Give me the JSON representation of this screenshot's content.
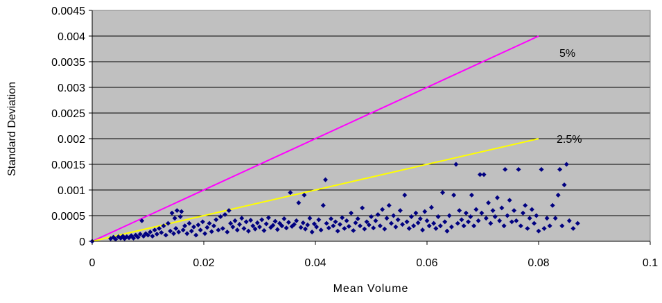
{
  "chart_data": {
    "type": "scatter",
    "title": "",
    "xlabel": "Mean Volume",
    "ylabel": "Standard Deviation",
    "xlim": [
      0,
      0.1
    ],
    "ylim": [
      0,
      0.0045
    ],
    "x_ticks": [
      "0",
      "0.02",
      "0.04",
      "0.06",
      "0.08",
      "0.1"
    ],
    "y_ticks": [
      "0",
      "0.0005",
      "0.001",
      "0.0015",
      "0.002",
      "0.0025",
      "0.003",
      "0.0035",
      "0.004",
      "0.0045"
    ],
    "grid": "horizontal",
    "plot_background": "#c0c0c0",
    "reference_lines": [
      {
        "label": "5%",
        "color": "#ff00ff",
        "x": [
          0,
          0.08
        ],
        "y": [
          0,
          0.004
        ]
      },
      {
        "label": "2.5%",
        "color": "#ffff00",
        "x": [
          0,
          0.08
        ],
        "y": [
          0,
          0.002
        ]
      }
    ],
    "scatter_color": "#000080",
    "series": [
      {
        "points": [
          [
            0.0,
            0.0
          ],
          [
            0.0033,
            5e-05
          ],
          [
            0.0038,
            8e-05
          ],
          [
            0.0042,
            4e-05
          ],
          [
            0.0047,
            9e-05
          ],
          [
            0.0051,
            6e-05
          ],
          [
            0.0055,
            0.0001
          ],
          [
            0.0058,
            5e-05
          ],
          [
            0.0062,
            9e-05
          ],
          [
            0.0066,
            7e-05
          ],
          [
            0.007,
            0.00011
          ],
          [
            0.0074,
            6e-05
          ],
          [
            0.0078,
            0.00012
          ],
          [
            0.0082,
            8e-05
          ],
          [
            0.0086,
            0.00014
          ],
          [
            0.0089,
            0.0004
          ],
          [
            0.0092,
            0.0001
          ],
          [
            0.0096,
            0.00015
          ],
          [
            0.01,
            0.00012
          ],
          [
            0.0104,
            0.00018
          ],
          [
            0.0108,
            0.0001
          ],
          [
            0.0112,
            0.00022
          ],
          [
            0.0116,
            0.00014
          ],
          [
            0.012,
            0.00025
          ],
          [
            0.0124,
            0.00017
          ],
          [
            0.0128,
            0.0003
          ],
          [
            0.0132,
            0.00012
          ],
          [
            0.0136,
            0.00035
          ],
          [
            0.014,
            0.0002
          ],
          [
            0.0143,
            0.00055
          ],
          [
            0.0146,
            0.00015
          ],
          [
            0.0148,
            0.00045
          ],
          [
            0.015,
            0.00025
          ],
          [
            0.0152,
            0.0006
          ],
          [
            0.0155,
            0.00018
          ],
          [
            0.0158,
            0.00048
          ],
          [
            0.016,
            0.00058
          ],
          [
            0.0163,
            0.00022
          ],
          [
            0.0166,
            0.0003
          ],
          [
            0.017,
            0.00015
          ],
          [
            0.0174,
            0.00035
          ],
          [
            0.0178,
            0.0002
          ],
          [
            0.0182,
            0.00028
          ],
          [
            0.0186,
            0.00012
          ],
          [
            0.019,
            0.00032
          ],
          [
            0.0194,
            0.00022
          ],
          [
            0.0198,
            0.00038
          ],
          [
            0.0202,
            0.00015
          ],
          [
            0.0206,
            0.00027
          ],
          [
            0.021,
            0.00035
          ],
          [
            0.0214,
            0.00019
          ],
          [
            0.0218,
            0.0003
          ],
          [
            0.0222,
            0.00042
          ],
          [
            0.0226,
            0.00022
          ],
          [
            0.023,
            0.00048
          ],
          [
            0.0234,
            0.00025
          ],
          [
            0.0238,
            0.00052
          ],
          [
            0.0242,
            0.00018
          ],
          [
            0.0245,
            0.0006
          ],
          [
            0.0248,
            0.00035
          ],
          [
            0.0252,
            0.00028
          ],
          [
            0.0256,
            0.0004
          ],
          [
            0.026,
            0.00022
          ],
          [
            0.0264,
            0.00033
          ],
          [
            0.0268,
            0.00045
          ],
          [
            0.0272,
            0.00025
          ],
          [
            0.0276,
            0.00038
          ],
          [
            0.028,
            0.0002
          ],
          [
            0.0284,
            0.00041
          ],
          [
            0.0288,
            0.0003
          ],
          [
            0.0292,
            0.00024
          ],
          [
            0.0296,
            0.00036
          ],
          [
            0.03,
            0.00028
          ],
          [
            0.0304,
            0.00042
          ],
          [
            0.0308,
            0.00021
          ],
          [
            0.0312,
            0.00034
          ],
          [
            0.0316,
            0.00046
          ],
          [
            0.032,
            0.00027
          ],
          [
            0.0324,
            0.00031
          ],
          [
            0.0328,
            0.00039
          ],
          [
            0.0332,
            0.00023
          ],
          [
            0.0336,
            0.00035
          ],
          [
            0.034,
            0.0003
          ],
          [
            0.0344,
            0.00044
          ],
          [
            0.0348,
            0.00026
          ],
          [
            0.0352,
            0.00037
          ],
          [
            0.0355,
            0.00095
          ],
          [
            0.0358,
            0.00029
          ],
          [
            0.0362,
            0.00033
          ],
          [
            0.0366,
            0.0004
          ],
          [
            0.037,
            0.00075
          ],
          [
            0.0374,
            0.00027
          ],
          [
            0.0378,
            0.00036
          ],
          [
            0.038,
            0.0009
          ],
          [
            0.0382,
            0.00024
          ],
          [
            0.0386,
            0.00032
          ],
          [
            0.039,
            0.00045
          ],
          [
            0.0394,
            0.00018
          ],
          [
            0.0398,
            0.00034
          ],
          [
            0.0402,
            0.00028
          ],
          [
            0.0406,
            0.00042
          ],
          [
            0.041,
            0.00022
          ],
          [
            0.0414,
            0.0007
          ],
          [
            0.0418,
            0.0012
          ],
          [
            0.042,
            0.00035
          ],
          [
            0.0424,
            0.00026
          ],
          [
            0.0428,
            0.00044
          ],
          [
            0.0432,
            0.0003
          ],
          [
            0.0436,
            0.00038
          ],
          [
            0.044,
            0.0002
          ],
          [
            0.0444,
            0.00033
          ],
          [
            0.0448,
            0.00046
          ],
          [
            0.0452,
            0.00025
          ],
          [
            0.0456,
            0.0004
          ],
          [
            0.046,
            0.00029
          ],
          [
            0.0464,
            0.00055
          ],
          [
            0.0468,
            0.00021
          ],
          [
            0.0472,
            0.00036
          ],
          [
            0.0476,
            0.00044
          ],
          [
            0.048,
            0.0003
          ],
          [
            0.0484,
            0.00065
          ],
          [
            0.0488,
            0.00024
          ],
          [
            0.0492,
            0.00038
          ],
          [
            0.0496,
            0.00032
          ],
          [
            0.05,
            0.00048
          ],
          [
            0.0504,
            0.00026
          ],
          [
            0.0508,
            0.0004
          ],
          [
            0.0512,
            0.00052
          ],
          [
            0.0516,
            0.0003
          ],
          [
            0.052,
            0.00062
          ],
          [
            0.0524,
            0.00024
          ],
          [
            0.0528,
            0.00045
          ],
          [
            0.0532,
            0.0007
          ],
          [
            0.0536,
            0.00035
          ],
          [
            0.054,
            0.0005
          ],
          [
            0.0544,
            0.00028
          ],
          [
            0.0548,
            0.00042
          ],
          [
            0.0552,
            0.0006
          ],
          [
            0.0556,
            0.00033
          ],
          [
            0.056,
            0.0009
          ],
          [
            0.0564,
            0.00038
          ],
          [
            0.0568,
            0.00025
          ],
          [
            0.0572,
            0.00048
          ],
          [
            0.0576,
            0.0003
          ],
          [
            0.058,
            0.00055
          ],
          [
            0.0584,
            0.00036
          ],
          [
            0.0588,
            0.00044
          ],
          [
            0.0592,
            0.00022
          ],
          [
            0.0596,
            0.00058
          ],
          [
            0.06,
            0.0004
          ],
          [
            0.0604,
            0.0003
          ],
          [
            0.0608,
            0.00066
          ],
          [
            0.0612,
            0.00035
          ],
          [
            0.0616,
            0.00025
          ],
          [
            0.062,
            0.00048
          ],
          [
            0.0624,
            0.0003
          ],
          [
            0.0628,
            0.00095
          ],
          [
            0.0632,
            0.00038
          ],
          [
            0.0636,
            0.0002
          ],
          [
            0.064,
            0.0005
          ],
          [
            0.0644,
            0.00028
          ],
          [
            0.0648,
            0.0009
          ],
          [
            0.0652,
            0.0015
          ],
          [
            0.0655,
            0.00035
          ],
          [
            0.0658,
            0.0006
          ],
          [
            0.0662,
            0.00042
          ],
          [
            0.0666,
            0.0003
          ],
          [
            0.067,
            0.00055
          ],
          [
            0.0674,
            0.00038
          ],
          [
            0.0678,
            0.00048
          ],
          [
            0.068,
            0.0009
          ],
          [
            0.0684,
            0.0003
          ],
          [
            0.0688,
            0.00062
          ],
          [
            0.0692,
            0.0004
          ],
          [
            0.0695,
            0.0013
          ],
          [
            0.0698,
            0.00055
          ],
          [
            0.0702,
            0.0013
          ],
          [
            0.0706,
            0.00045
          ],
          [
            0.071,
            0.00075
          ],
          [
            0.0714,
            0.00035
          ],
          [
            0.0718,
            0.0006
          ],
          [
            0.0722,
            0.00048
          ],
          [
            0.0726,
            0.00085
          ],
          [
            0.073,
            0.0004
          ],
          [
            0.0734,
            0.00065
          ],
          [
            0.0738,
            0.0003
          ],
          [
            0.074,
            0.0014
          ],
          [
            0.0744,
            0.0005
          ],
          [
            0.0748,
            0.0008
          ],
          [
            0.0752,
            0.00038
          ],
          [
            0.0756,
            0.0006
          ],
          [
            0.076,
            0.0004
          ],
          [
            0.0764,
            0.0014
          ],
          [
            0.0768,
            0.0003
          ],
          [
            0.0772,
            0.00055
          ],
          [
            0.0776,
            0.0007
          ],
          [
            0.078,
            0.00025
          ],
          [
            0.0784,
            0.00045
          ],
          [
            0.0788,
            0.00062
          ],
          [
            0.0792,
            0.00035
          ],
          [
            0.0796,
            0.0005
          ],
          [
            0.08,
            0.0002
          ],
          [
            0.0805,
            0.0014
          ],
          [
            0.081,
            0.00025
          ],
          [
            0.0815,
            0.00045
          ],
          [
            0.082,
            0.0003
          ],
          [
            0.0825,
            0.0007
          ],
          [
            0.083,
            0.00045
          ],
          [
            0.0835,
            0.0009
          ],
          [
            0.0838,
            0.0014
          ],
          [
            0.0842,
            0.0003
          ],
          [
            0.0846,
            0.0011
          ],
          [
            0.085,
            0.0015
          ],
          [
            0.0855,
            0.0004
          ],
          [
            0.0862,
            0.00025
          ],
          [
            0.087,
            0.00035
          ]
        ]
      }
    ]
  }
}
